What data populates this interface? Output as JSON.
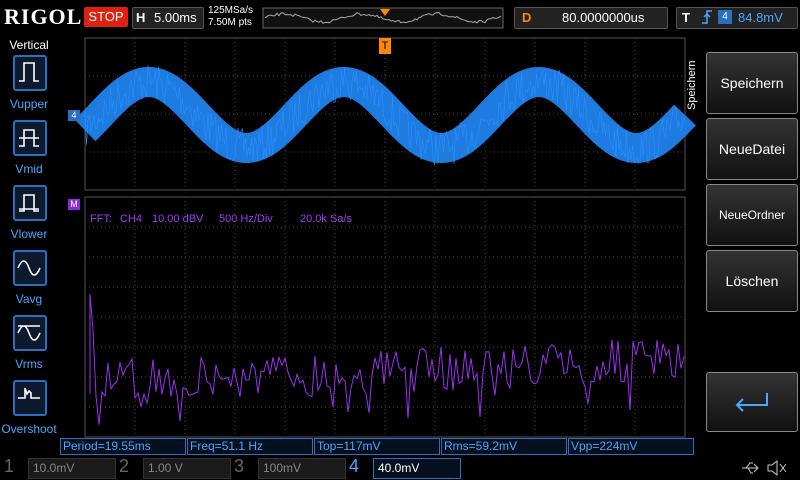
{
  "header": {
    "logo": "RIGOL",
    "run_state": "STOP",
    "timebase_label": "H",
    "timebase": "5.00ms",
    "sample_rate": "125MSa/s",
    "memory_depth": "7.50M pts",
    "delay_label": "D",
    "delay": "80.0000000us",
    "trigger_label": "T",
    "trigger_level": "84.8mV"
  },
  "left_menu": {
    "title": "Vertical",
    "items": [
      "Vupper",
      "Vmid",
      "Vlower",
      "Vavg",
      "Vrms",
      "Overshoot"
    ]
  },
  "right_menu": {
    "title": "Speichern",
    "items": [
      "Speichern",
      "NeueDatei",
      "NeueOrdner",
      "Löschen"
    ]
  },
  "markers": {
    "channel": "4",
    "math": "M",
    "trigger": "T"
  },
  "fft_info": [
    "FFT:",
    "CH4",
    "10.00 dBV",
    "500 Hz/Div",
    "20.0k Sa/s"
  ],
  "measurements": [
    "Period=19.55ms",
    "Freq=51.1 Hz",
    "Top=117mV",
    "Rms=59.2mV",
    "Vpp=224mV"
  ],
  "channels": [
    {
      "number": "1",
      "scale": "10.0mV"
    },
    {
      "number": "2",
      "scale": "1.00 V"
    },
    {
      "number": "3",
      "scale": "100mV"
    },
    {
      "number": "4",
      "scale": "40.0mV"
    }
  ]
}
